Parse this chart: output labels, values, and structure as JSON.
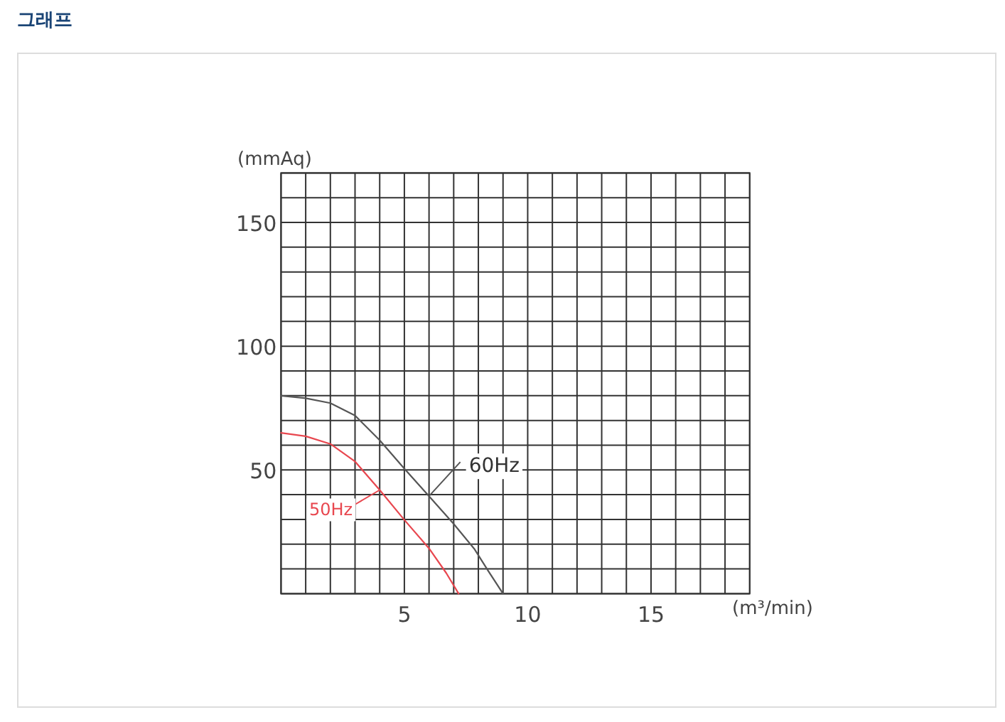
{
  "chart_data": {
    "type": "line",
    "title": "그래프",
    "xlabel": "(m³/min)",
    "ylabel": "(mmAq)",
    "xlim": [
      0,
      19
    ],
    "ylim": [
      0,
      170
    ],
    "xticks": [
      {
        "value": 0,
        "label": null
      },
      {
        "value": 1,
        "label": null
      },
      {
        "value": 2,
        "label": null
      },
      {
        "value": 3,
        "label": null
      },
      {
        "value": 4,
        "label": null
      },
      5,
      {
        "value": 6,
        "label": null
      },
      {
        "value": 7,
        "label": null
      },
      {
        "value": 8,
        "label": null
      },
      {
        "value": 9,
        "label": null
      },
      10,
      {
        "value": 11,
        "label": null
      },
      {
        "value": 12,
        "label": null
      },
      {
        "value": 13,
        "label": null
      },
      {
        "value": 14,
        "label": null
      },
      15,
      {
        "value": 16,
        "label": null
      },
      {
        "value": 17,
        "label": null
      },
      {
        "value": 18,
        "label": null
      },
      {
        "value": 19,
        "label": null
      }
    ],
    "yticks": [
      {
        "value": 0,
        "label": null
      },
      {
        "value": 10,
        "label": null
      },
      {
        "value": 20,
        "label": null
      },
      {
        "value": 30,
        "label": null
      },
      {
        "value": 40,
        "label": null
      },
      50,
      {
        "value": 60,
        "label": null
      },
      {
        "value": 70,
        "label": null
      },
      {
        "value": 80,
        "label": null
      },
      {
        "value": 90,
        "label": null
      },
      100,
      {
        "value": 110,
        "label": null
      },
      {
        "value": 120,
        "label": null
      },
      {
        "value": 130,
        "label": null
      },
      {
        "value": 140,
        "label": null
      },
      150,
      {
        "value": 160,
        "label": null
      },
      {
        "value": 170,
        "label": null
      }
    ],
    "grid": true,
    "series": [
      {
        "name": "60Hz",
        "color": "#555555",
        "x": [
          0,
          1,
          2,
          3,
          4,
          5,
          6,
          7,
          7.85,
          8.4,
          9
        ],
        "values": [
          80,
          79,
          77,
          72,
          62,
          50.5,
          39.4,
          28.2,
          17.9,
          9.2,
          0
        ]
      },
      {
        "name": "50Hz",
        "color": "#e8474f",
        "x": [
          0,
          1,
          2,
          3,
          4,
          5,
          6,
          6.7,
          7.2
        ],
        "values": [
          65,
          63.6,
          60.5,
          53.4,
          41.9,
          29.8,
          18.3,
          8.3,
          0
        ]
      }
    ]
  }
}
